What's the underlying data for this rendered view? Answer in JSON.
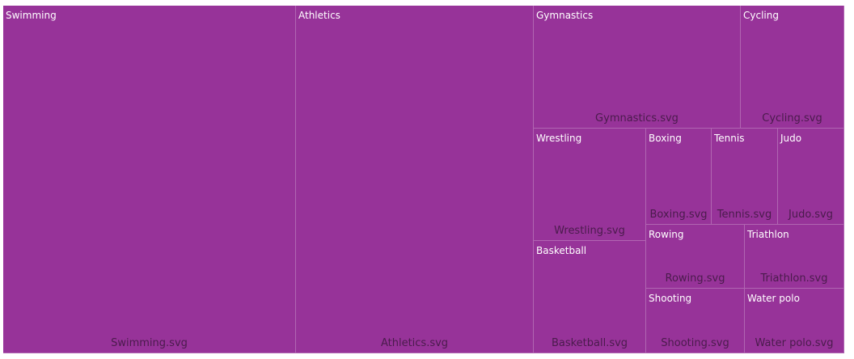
{
  "colors": {
    "tile": "#973399",
    "background": "#ffffff"
  },
  "chart_data": {
    "type": "treemap",
    "title": "",
    "items": [
      {
        "name": "Swimming",
        "image": "Swimming.svg"
      },
      {
        "name": "Athletics",
        "image": "Athletics.svg"
      },
      {
        "name": "Gymnastics",
        "image": "Gymnastics.svg"
      },
      {
        "name": "Cycling",
        "image": "Cycling.svg"
      },
      {
        "name": "Wrestling",
        "image": "Wrestling.svg"
      },
      {
        "name": "Boxing",
        "image": "Boxing.svg"
      },
      {
        "name": "Tennis",
        "image": "Tennis.svg"
      },
      {
        "name": "Judo",
        "image": "Judo.svg"
      },
      {
        "name": "Basketball",
        "image": "Basketball.svg"
      },
      {
        "name": "Rowing",
        "image": "Rowing.svg"
      },
      {
        "name": "Triathlon",
        "image": "Triathlon.svg"
      },
      {
        "name": "Shooting",
        "image": "Shooting.svg"
      },
      {
        "name": "Water polo",
        "image": "Water polo.svg"
      }
    ]
  }
}
